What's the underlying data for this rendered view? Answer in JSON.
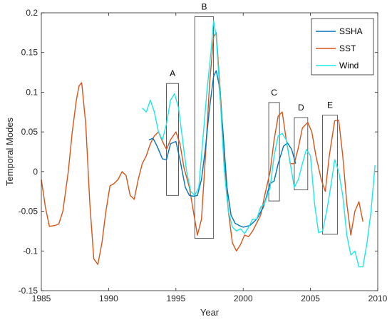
{
  "chart_data": {
    "type": "line",
    "xlabel": "Year",
    "ylabel": "Temporal Modes",
    "xlim": [
      1985,
      2010
    ],
    "ylim": [
      -0.15,
      0.2
    ],
    "x_ticks": [
      "1985",
      "1990",
      "1995",
      "2000",
      "2005",
      "2010"
    ],
    "y_ticks": [
      "-0.15",
      "-0.1",
      "-0.05",
      "0",
      "0.05",
      "0.1",
      "0.15",
      "0.2"
    ],
    "legend_position": "top-right",
    "series": [
      {
        "name": "SSHA",
        "color": "#0072BD",
        "x": [
          1993.0,
          1993.3,
          1993.6,
          1994.0,
          1994.3,
          1994.6,
          1995.0,
          1995.3,
          1995.7,
          1996.0,
          1996.3,
          1996.6,
          1996.9,
          1997.2,
          1997.5,
          1997.8,
          1998.0,
          1998.2,
          1998.5,
          1998.8,
          1999.1,
          1999.4,
          1999.7,
          2000.0,
          2000.5,
          2001.0,
          2001.5,
          2002.0,
          2002.3,
          2002.6,
          2003.0,
          2003.3,
          2003.6,
          2003.9
        ],
        "y": [
          0.04,
          0.042,
          0.032,
          0.016,
          0.015,
          0.035,
          0.038,
          0.015,
          -0.02,
          -0.03,
          -0.031,
          -0.03,
          -0.01,
          0.03,
          0.08,
          0.12,
          0.127,
          0.11,
          0.05,
          -0.02,
          -0.055,
          -0.065,
          -0.068,
          -0.07,
          -0.068,
          -0.06,
          -0.045,
          -0.015,
          -0.012,
          0.01,
          0.032,
          0.036,
          0.028,
          0.01
        ]
      },
      {
        "name": "SST",
        "color": "#D95319",
        "x": [
          1985.0,
          1985.3,
          1985.6,
          1986.0,
          1986.3,
          1986.6,
          1987.0,
          1987.3,
          1987.6,
          1987.8,
          1988.0,
          1988.3,
          1988.6,
          1988.9,
          1989.2,
          1989.5,
          1989.8,
          1990.1,
          1990.4,
          1990.7,
          1991.0,
          1991.3,
          1991.6,
          1991.9,
          1992.2,
          1992.5,
          1992.8,
          1993.1,
          1993.4,
          1993.7,
          1994.0,
          1994.3,
          1994.6,
          1995.0,
          1995.3,
          1995.6,
          1996.0,
          1996.3,
          1996.6,
          1996.9,
          1997.2,
          1997.5,
          1997.8,
          1998.0,
          1998.3,
          1998.6,
          1998.9,
          1999.2,
          1999.5,
          1999.8,
          2000.1,
          2000.4,
          2000.7,
          2001.0,
          2001.3,
          2001.6,
          2002.0,
          2002.3,
          2002.6,
          2002.9,
          2003.2,
          2003.5,
          2003.8,
          2004.1,
          2004.4,
          2004.8,
          2005.1,
          2005.4,
          2005.8,
          2006.1,
          2006.4,
          2006.8,
          2007.1,
          2007.4,
          2007.7,
          2008.0,
          2008.3,
          2008.6,
          2008.9
        ],
        "y": [
          -0.01,
          -0.045,
          -0.069,
          -0.068,
          -0.066,
          -0.05,
          0.0,
          0.05,
          0.09,
          0.108,
          0.112,
          0.06,
          -0.04,
          -0.11,
          -0.117,
          -0.09,
          -0.05,
          -0.018,
          -0.015,
          -0.01,
          0.0,
          -0.005,
          -0.03,
          -0.035,
          -0.01,
          0.01,
          0.02,
          0.035,
          0.045,
          0.05,
          0.038,
          0.028,
          0.04,
          0.05,
          0.035,
          0.005,
          -0.02,
          -0.05,
          -0.08,
          -0.06,
          0.02,
          0.11,
          0.17,
          0.175,
          0.1,
          0.02,
          -0.05,
          -0.09,
          -0.1,
          -0.092,
          -0.08,
          -0.082,
          -0.075,
          -0.065,
          -0.055,
          -0.03,
          0.0,
          0.04,
          0.07,
          0.075,
          0.04,
          0.01,
          0.01,
          0.03,
          0.055,
          0.062,
          0.05,
          0.02,
          -0.01,
          -0.025,
          0.02,
          0.064,
          0.065,
          0.02,
          -0.04,
          -0.08,
          -0.05,
          -0.038,
          -0.063
        ]
      },
      {
        "name": "Wind",
        "color": "#1AE8E8",
        "x": [
          1992.5,
          1992.8,
          1993.1,
          1993.4,
          1993.7,
          1994.0,
          1994.3,
          1994.6,
          1994.9,
          1995.2,
          1995.5,
          1995.8,
          1996.1,
          1996.4,
          1996.7,
          1997.0,
          1997.3,
          1997.6,
          1997.8,
          1998.0,
          1998.3,
          1998.6,
          1998.9,
          1999.2,
          1999.5,
          1999.8,
          2000.1,
          2000.4,
          2000.7,
          2001.0,
          2001.3,
          2001.6,
          2002.0,
          2002.3,
          2002.6,
          2002.9,
          2003.2,
          2003.5,
          2003.8,
          2004.1,
          2004.4,
          2004.7,
          2005.0,
          2005.3,
          2005.6,
          2005.9,
          2006.2,
          2006.5,
          2006.8,
          2007.1,
          2007.4,
          2007.7,
          2008.0,
          2008.3,
          2008.6,
          2008.9,
          2009.2,
          2009.5,
          2009.8
        ],
        "y": [
          0.08,
          0.075,
          0.09,
          0.075,
          0.05,
          0.04,
          0.06,
          0.09,
          0.098,
          0.08,
          0.04,
          0.0,
          -0.025,
          -0.03,
          -0.02,
          0.04,
          0.1,
          0.15,
          0.19,
          0.17,
          0.09,
          0.0,
          -0.05,
          -0.07,
          -0.075,
          -0.072,
          -0.078,
          -0.07,
          -0.06,
          -0.06,
          -0.045,
          -0.04,
          -0.02,
          0.02,
          0.045,
          0.048,
          0.04,
          0.01,
          -0.02,
          -0.01,
          0.01,
          0.028,
          0.02,
          -0.04,
          -0.077,
          -0.075,
          -0.05,
          -0.02,
          0.015,
          0.0,
          -0.03,
          -0.08,
          -0.105,
          -0.1,
          -0.12,
          -0.12,
          -0.09,
          -0.05,
          0.008
        ]
      }
    ],
    "event_boxes": [
      {
        "label": "A",
        "x": [
          1994.3,
          1995.2
        ],
        "y": [
          -0.03,
          0.111
        ]
      },
      {
        "label": "B",
        "x": [
          1996.4,
          1997.8
        ],
        "y": [
          -0.084,
          0.195
        ]
      },
      {
        "label": "C",
        "x": [
          2001.9,
          2002.7
        ],
        "y": [
          -0.037,
          0.087
        ]
      },
      {
        "label": "D",
        "x": [
          2003.8,
          2004.8
        ],
        "y": [
          -0.023,
          0.068
        ]
      },
      {
        "label": "E",
        "x": [
          2005.9,
          2007.0
        ],
        "y": [
          -0.079,
          0.071
        ]
      }
    ]
  }
}
